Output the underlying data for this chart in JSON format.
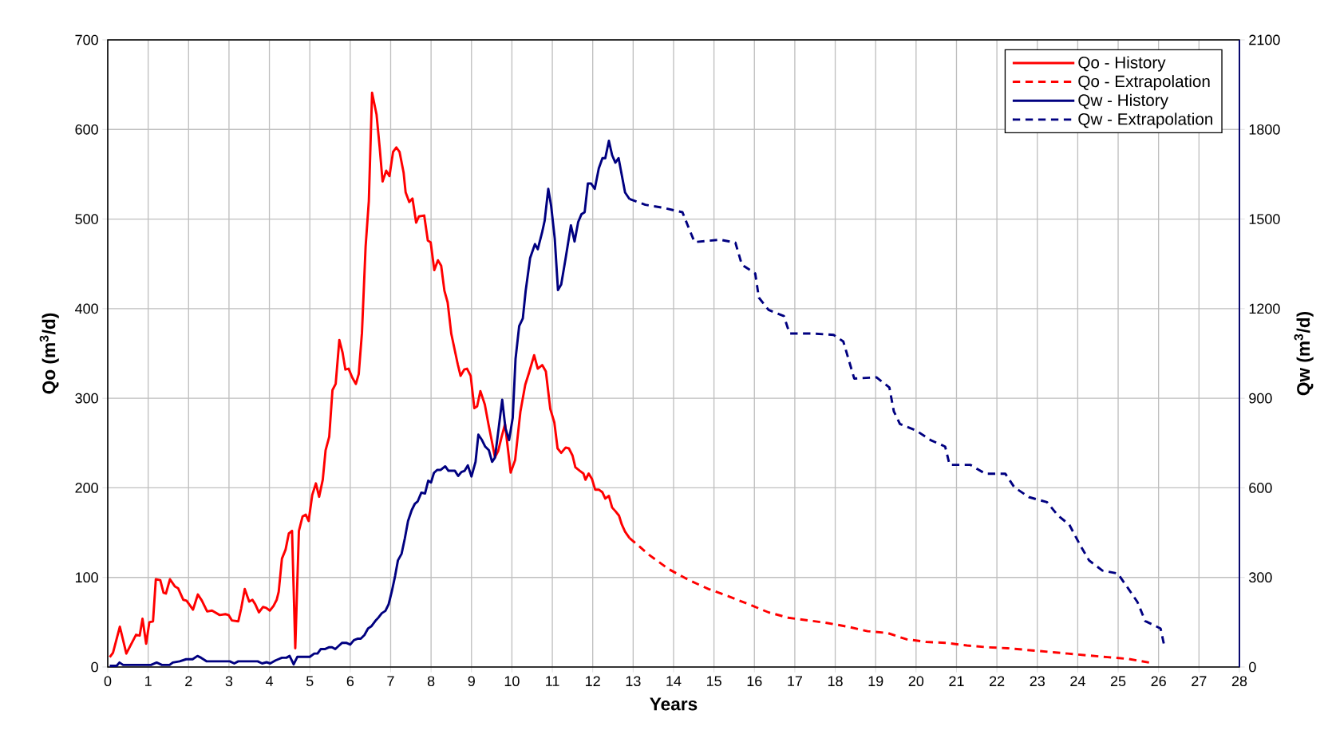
{
  "chart_data": {
    "type": "line",
    "xlabel": "Years",
    "ylabel": "Qo (m$^{3}$/d)",
    "y2label": "Qw (m$^{3}$/d)",
    "xlim": [
      0,
      28
    ],
    "xticks": [
      0,
      1,
      2,
      3,
      4,
      5,
      6,
      7,
      8,
      9,
      10,
      11,
      12,
      13,
      14,
      15,
      16,
      17,
      18,
      19,
      20,
      21,
      22,
      23,
      24,
      25,
      26,
      27,
      28
    ],
    "ylim": [
      0,
      700
    ],
    "yticks": [
      0,
      100,
      200,
      300,
      400,
      500,
      600,
      700
    ],
    "y2lim": [
      0,
      2100
    ],
    "y2ticks": [
      0,
      300,
      600,
      900,
      1200,
      1500,
      1800,
      2100
    ],
    "grid": true,
    "legend": "top right",
    "marker": "none",
    "series": [
      {
        "name": "Qo - History",
        "color": "#ff0000",
        "line_style": "solid",
        "x": [
          0.05,
          0.13,
          0.3,
          0.46,
          0.7,
          0.79,
          0.86,
          0.95,
          1.03,
          1.12,
          1.19,
          1.3,
          1.38,
          1.44,
          1.54,
          1.66,
          1.74,
          1.87,
          1.95,
          2.11,
          2.23,
          2.33,
          2.46,
          2.58,
          2.77,
          2.91,
          2.99,
          3.07,
          3.23,
          3.3,
          3.39,
          3.5,
          3.58,
          3.65,
          3.74,
          3.84,
          3.92,
          4.01,
          4.1,
          4.18,
          4.23,
          4.31,
          4.4,
          4.48,
          4.56,
          4.64,
          4.73,
          4.82,
          4.9,
          4.97,
          5.06,
          5.15,
          5.23,
          5.32,
          5.39,
          5.48,
          5.56,
          5.64,
          5.73,
          5.81,
          5.88,
          5.96,
          6.05,
          6.14,
          6.21,
          6.29,
          6.38,
          6.46,
          6.54,
          6.65,
          6.73,
          6.8,
          6.89,
          6.97,
          7.06,
          7.14,
          7.22,
          7.32,
          7.37,
          7.46,
          7.54,
          7.63,
          7.7,
          7.83,
          7.92,
          7.99,
          8.08,
          8.17,
          8.25,
          8.33,
          8.41,
          8.5,
          8.66,
          8.73,
          8.82,
          8.89,
          8.98,
          9.07,
          9.14,
          9.22,
          9.33,
          9.42,
          9.5,
          9.58,
          9.66,
          9.74,
          9.83,
          9.97,
          10.08,
          10.21,
          10.33,
          10.42,
          10.55,
          10.64,
          10.75,
          10.84,
          10.95,
          11.05,
          11.13,
          11.22,
          11.33,
          11.41,
          11.5,
          11.57,
          11.68,
          11.77,
          11.82,
          11.9,
          11.98,
          12.06,
          12.15,
          12.24,
          12.31,
          12.4,
          12.48,
          12.56,
          12.65,
          12.72,
          12.8,
          12.91
        ],
        "values": [
          11,
          16,
          45,
          15,
          36,
          35,
          54,
          26,
          50,
          51,
          98,
          97,
          83,
          82,
          98,
          90,
          88,
          75,
          74,
          64,
          81,
          74,
          62,
          63,
          58,
          59,
          58,
          52,
          51,
          65,
          87,
          73,
          75,
          70,
          61,
          67,
          66,
          63,
          68,
          75,
          84,
          121,
          131,
          149,
          152,
          21,
          152,
          168,
          170,
          163,
          192,
          205,
          190,
          209,
          242,
          257,
          309,
          316,
          365,
          351,
          332,
          333,
          323,
          316,
          327,
          373,
          469,
          520,
          641,
          617,
          579,
          542,
          554,
          548,
          575,
          580,
          575,
          552,
          530,
          519,
          523,
          496,
          503,
          504,
          476,
          474,
          443,
          454,
          448,
          420,
          407,
          372,
          338,
          325,
          332,
          333,
          325,
          289,
          291,
          308,
          293,
          271,
          253,
          234,
          241,
          256,
          271,
          217,
          231,
          285,
          315,
          328,
          348,
          333,
          337,
          330,
          288,
          273,
          244,
          239,
          245,
          244,
          236,
          223,
          219,
          216,
          209,
          216,
          210,
          198,
          198,
          195,
          188,
          191,
          178,
          174,
          169,
          159,
          151,
          144
        ]
      },
      {
        "name": "Qo - Extrapolation",
        "color": "#ff0000",
        "line_style": "dashed",
        "x": [
          12.91,
          13.4,
          13.89,
          14.38,
          14.87,
          15.36,
          15.86,
          16.35,
          16.84,
          17.33,
          17.82,
          18.31,
          18.8,
          19.29,
          19.76,
          20.25,
          20.74,
          21.26,
          21.77,
          22.26,
          22.75,
          23.26,
          23.75,
          24.24,
          24.74,
          25.26,
          25.77,
          25.83
        ],
        "values": [
          144,
          125,
          109,
          97,
          87,
          79,
          70,
          61,
          55,
          52,
          49,
          45,
          40,
          38,
          31,
          28,
          27,
          24,
          22,
          21,
          19,
          17,
          15,
          13,
          11,
          9,
          5,
          3
        ]
      },
      {
        "name": "Qw - History",
        "color": "#000080",
        "line_style": "solid",
        "axis": "y2",
        "x": [
          0.05,
          0.22,
          0.29,
          0.38,
          1.07,
          1.21,
          1.34,
          1.53,
          1.61,
          1.78,
          1.94,
          2.1,
          2.22,
          2.31,
          2.45,
          3.02,
          3.13,
          3.23,
          3.71,
          3.82,
          3.93,
          4.02,
          4.15,
          4.31,
          4.42,
          4.5,
          4.6,
          4.69,
          5.0,
          5.11,
          5.19,
          5.27,
          5.37,
          5.47,
          5.55,
          5.63,
          5.71,
          5.8,
          5.9,
          6.0,
          6.09,
          6.19,
          6.26,
          6.35,
          6.44,
          6.52,
          6.62,
          6.7,
          6.78,
          6.87,
          6.95,
          7.03,
          7.11,
          7.18,
          7.27,
          7.35,
          7.43,
          7.52,
          7.6,
          7.67,
          7.76,
          7.85,
          7.93,
          8.0,
          8.07,
          8.15,
          8.24,
          8.35,
          8.43,
          8.59,
          8.67,
          8.75,
          8.83,
          8.91,
          9.0,
          9.1,
          9.17,
          9.26,
          9.34,
          9.43,
          9.51,
          9.58,
          9.67,
          9.76,
          9.84,
          9.93,
          10.02,
          10.09,
          10.18,
          10.27,
          10.34,
          10.45,
          10.57,
          10.64,
          10.75,
          10.81,
          10.9,
          10.97,
          11.06,
          11.14,
          11.22,
          11.33,
          11.46,
          11.55,
          11.64,
          11.72,
          11.8,
          11.88,
          11.96,
          12.05,
          12.15,
          12.24,
          12.31,
          12.4,
          12.48,
          12.56,
          12.64,
          12.8,
          12.91
        ],
        "values": [
          4,
          4,
          15,
          7,
          7,
          15,
          7,
          7,
          15,
          19,
          26,
          26,
          37,
          31,
          19,
          19,
          12,
          19,
          19,
          12,
          16,
          12,
          22,
          31,
          31,
          37,
          9,
          34,
          34,
          45,
          45,
          60,
          60,
          66,
          66,
          60,
          70,
          81,
          81,
          75,
          90,
          95,
          95,
          107,
          129,
          136,
          154,
          166,
          180,
          188,
          210,
          254,
          305,
          357,
          379,
          430,
          489,
          525,
          547,
          555,
          584,
          581,
          624,
          618,
          650,
          660,
          660,
          672,
          657,
          657,
          640,
          653,
          657,
          675,
          638,
          687,
          778,
          760,
          738,
          726,
          687,
          701,
          797,
          895,
          800,
          760,
          834,
          1032,
          1142,
          1167,
          1259,
          1369,
          1416,
          1399,
          1457,
          1494,
          1601,
          1545,
          1435,
          1262,
          1281,
          1369,
          1479,
          1425,
          1490,
          1516,
          1523,
          1619,
          1619,
          1601,
          1670,
          1704,
          1704,
          1762,
          1714,
          1689,
          1704,
          1589,
          1567
        ]
      },
      {
        "name": "Qw - Extrapolation",
        "color": "#000080",
        "line_style": "dashed",
        "axis": "y2",
        "x": [
          12.91,
          13.3,
          13.73,
          14.22,
          14.37,
          14.52,
          15.15,
          15.53,
          15.69,
          16.02,
          16.11,
          16.35,
          16.73,
          16.87,
          17.44,
          17.96,
          18.2,
          18.47,
          19.02,
          19.34,
          19.45,
          19.6,
          20.0,
          20.36,
          20.72,
          20.83,
          21.34,
          21.72,
          22.21,
          22.43,
          22.79,
          23.24,
          23.52,
          23.79,
          24.06,
          24.28,
          24.61,
          24.99,
          25.26,
          25.48,
          25.67,
          26.05,
          26.13
        ],
        "values": [
          1567,
          1548,
          1538,
          1523,
          1472,
          1423,
          1431,
          1421,
          1347,
          1318,
          1237,
          1196,
          1175,
          1117,
          1117,
          1112,
          1090,
          966,
          970,
          936,
          856,
          814,
          792,
          760,
          738,
          677,
          677,
          647,
          647,
          602,
          569,
          552,
          506,
          477,
          408,
          357,
          323,
          313,
          261,
          217,
          154,
          129,
          78
        ]
      }
    ]
  }
}
